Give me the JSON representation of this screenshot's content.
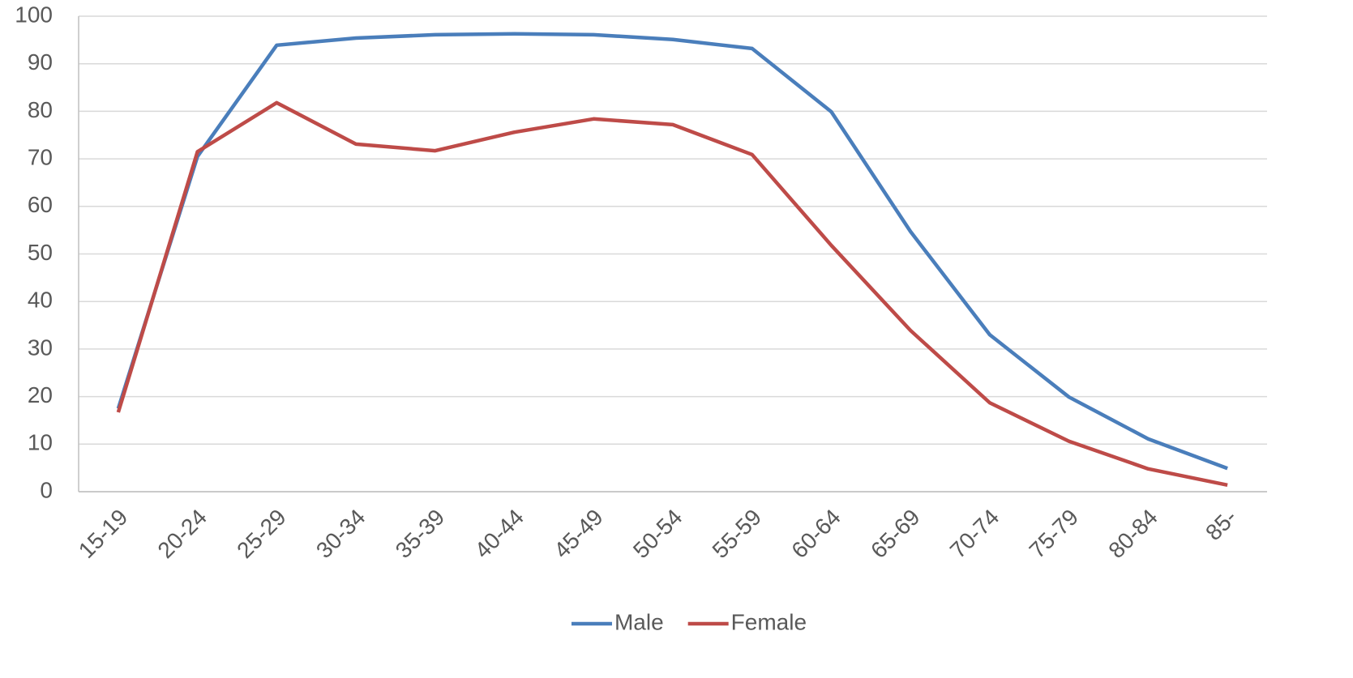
{
  "chart_data": {
    "type": "line",
    "categories": [
      "15-19",
      "20-24",
      "25-29",
      "30-34",
      "35-39",
      "40-44",
      "45-49",
      "50-54",
      "55-59",
      "60-64",
      "65-69",
      "70-74",
      "75-79",
      "80-84",
      "85-"
    ],
    "series": [
      {
        "name": "Male",
        "color": "#4a7ebb",
        "values": [
          17.5,
          70.5,
          93.9,
          95.4,
          96.1,
          96.3,
          96.1,
          95.1,
          93.2,
          79.9,
          54.7,
          33.0,
          19.9,
          11.1,
          4.9
        ]
      },
      {
        "name": "Female",
        "color": "#be4b48",
        "values": [
          16.7,
          71.5,
          81.8,
          73.1,
          71.7,
          75.6,
          78.4,
          77.2,
          70.9,
          51.8,
          33.9,
          18.7,
          10.6,
          4.8,
          1.4
        ]
      }
    ],
    "ylim": [
      0,
      100
    ],
    "yticks": [
      0,
      10,
      20,
      30,
      40,
      50,
      60,
      70,
      80,
      90,
      100
    ],
    "grid": true,
    "legend": "bottom"
  }
}
